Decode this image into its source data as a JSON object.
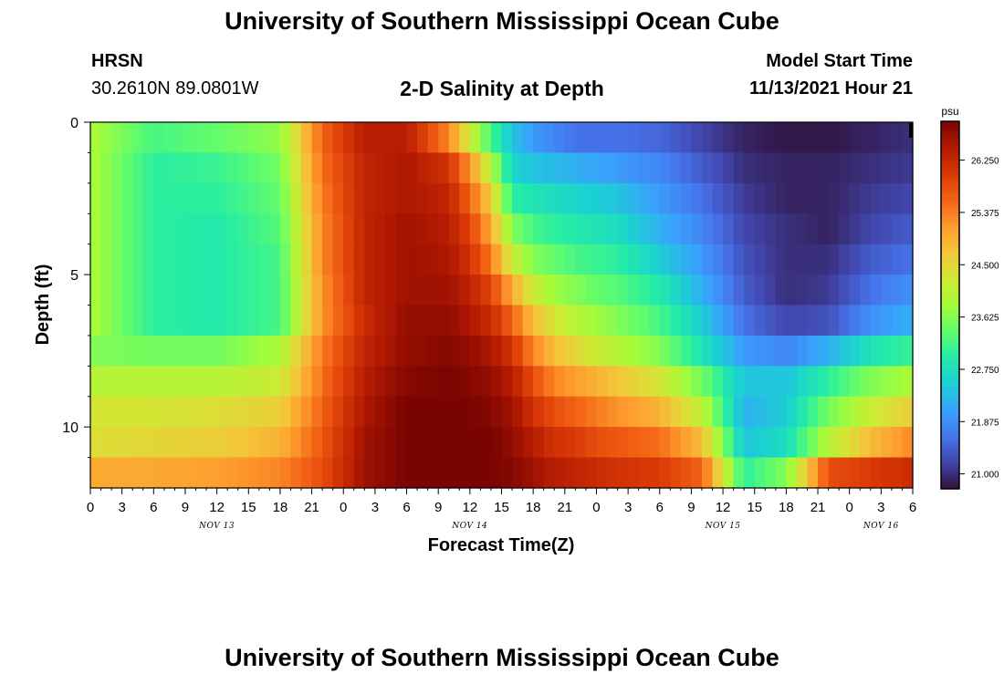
{
  "header": {
    "title": "University of Southern Mississippi Ocean Cube",
    "station": "HRSN",
    "coords": "30.2610N  89.0801W",
    "chart_title": "2-D Salinity at Depth",
    "model_start_label": "Model Start Time",
    "model_start_value": "11/13/2021 Hour 21"
  },
  "footer": {
    "title": "University of Southern Mississippi Ocean Cube"
  },
  "colors": {
    "background": "#ffffff",
    "axis": "#000000",
    "colormap": [
      "#30123b",
      "#4145ab",
      "#4675ed",
      "#39a2fc",
      "#1bcfd4",
      "#24eca6",
      "#61fc6c",
      "#a4fc3b",
      "#d1e834",
      "#f3c63a",
      "#fe9b2d",
      "#f36315",
      "#d93806",
      "#b11901",
      "#7a0402"
    ]
  },
  "chart_data": {
    "type": "heatmap",
    "title": "2-D Salinity at Depth",
    "xlabel": "Forecast Time(Z)",
    "ylabel": "Depth (ft)",
    "x_tick_labels": [
      "0",
      "3",
      "6",
      "9",
      "12",
      "15",
      "18",
      "21",
      "0",
      "3",
      "6",
      "9",
      "12",
      "15",
      "18",
      "21",
      "0",
      "3",
      "6",
      "9",
      "12",
      "15",
      "18",
      "21",
      "0",
      "3",
      "6"
    ],
    "x_start_hour": 0,
    "x_end_hour": 78,
    "date_labels": [
      {
        "label": "NOV 13",
        "hour": 12
      },
      {
        "label": "NOV 14",
        "hour": 36
      },
      {
        "label": "NOV 15",
        "hour": 60
      },
      {
        "label": "NOV 16",
        "hour": 75
      }
    ],
    "ylim": [
      0,
      12
    ],
    "y_ticks": [
      0,
      5,
      10
    ],
    "y_minor_ticks": [
      1,
      2,
      3,
      4,
      6,
      7,
      8,
      9,
      11
    ],
    "colorbar": {
      "unit": "psu",
      "min": 20.75,
      "max": 26.9,
      "ticks": [
        "21.000",
        "21.875",
        "22.750",
        "23.625",
        "24.500",
        "25.375",
        "26.250"
      ]
    },
    "time_hours": [
      0,
      6,
      12,
      18,
      22,
      26,
      30,
      34,
      36,
      38,
      40,
      42,
      44,
      46,
      48,
      50,
      54,
      58,
      62,
      66,
      70,
      74,
      78
    ],
    "depth_levels_ft": [
      0.5,
      1.5,
      2.5,
      3.5,
      4.5,
      5.5,
      6.5,
      7.5,
      8.5,
      9.5,
      10.5,
      11.5
    ],
    "salinity_psu": [
      [
        23.9,
        23.2,
        23.4,
        23.7,
        25.6,
        26.4,
        26.4,
        25.3,
        24.2,
        23.2,
        22.4,
        22.0,
        21.8,
        21.6,
        21.6,
        21.6,
        21.5,
        21.2,
        20.9,
        20.8,
        20.8,
        20.9,
        21.0
      ],
      [
        23.9,
        23.0,
        23.1,
        23.5,
        25.5,
        26.3,
        26.5,
        26.1,
        25.2,
        24.0,
        22.6,
        22.4,
        22.3,
        22.2,
        22.1,
        22.0,
        21.8,
        21.4,
        21.0,
        20.9,
        20.9,
        21.0,
        21.1
      ],
      [
        23.9,
        23.0,
        23.0,
        23.4,
        25.4,
        26.3,
        26.5,
        26.3,
        25.6,
        24.6,
        23.0,
        22.8,
        22.7,
        22.6,
        22.5,
        22.4,
        22.0,
        21.6,
        21.1,
        20.9,
        20.9,
        21.1,
        21.2
      ],
      [
        23.9,
        23.0,
        22.9,
        23.3,
        25.3,
        26.3,
        26.6,
        26.4,
        25.9,
        25.0,
        23.6,
        23.2,
        23.0,
        22.9,
        22.8,
        22.7,
        22.2,
        21.8,
        21.2,
        21.0,
        20.9,
        21.2,
        21.4
      ],
      [
        23.9,
        23.0,
        22.9,
        23.2,
        25.3,
        26.3,
        26.6,
        26.5,
        26.1,
        25.4,
        24.2,
        23.6,
        23.4,
        23.2,
        23.1,
        23.0,
        22.5,
        22.0,
        21.3,
        21.0,
        21.0,
        21.4,
        21.6
      ],
      [
        23.9,
        23.0,
        22.9,
        23.2,
        25.2,
        26.3,
        26.6,
        26.6,
        26.3,
        25.9,
        25.0,
        24.2,
        23.8,
        23.6,
        23.4,
        23.3,
        22.9,
        22.2,
        21.4,
        21.0,
        21.1,
        21.6,
        21.9
      ],
      [
        23.9,
        23.0,
        22.9,
        23.2,
        25.2,
        26.2,
        26.7,
        26.7,
        26.5,
        26.2,
        25.6,
        24.8,
        24.3,
        24.0,
        23.8,
        23.6,
        23.2,
        22.5,
        21.6,
        21.2,
        21.3,
        21.9,
        22.2
      ],
      [
        23.6,
        23.5,
        23.5,
        23.9,
        25.4,
        26.3,
        26.7,
        26.8,
        26.7,
        26.5,
        26.1,
        25.3,
        24.8,
        24.5,
        24.2,
        24.0,
        23.6,
        22.8,
        22.0,
        21.8,
        22.2,
        22.8,
        23.1
      ],
      [
        24.0,
        24.0,
        24.0,
        24.2,
        25.5,
        26.4,
        26.8,
        26.9,
        26.8,
        26.7,
        26.4,
        25.8,
        25.3,
        25.1,
        24.9,
        24.7,
        24.3,
        23.5,
        22.4,
        22.4,
        23.0,
        23.6,
        23.9
      ],
      [
        24.3,
        24.3,
        24.4,
        24.6,
        25.6,
        26.5,
        26.9,
        26.9,
        26.9,
        26.8,
        26.6,
        26.1,
        25.8,
        25.6,
        25.4,
        25.2,
        24.9,
        24.1,
        22.2,
        22.5,
        23.5,
        24.2,
        24.6
      ],
      [
        24.4,
        24.5,
        24.6,
        24.9,
        25.7,
        26.6,
        26.9,
        26.9,
        26.9,
        26.9,
        26.7,
        26.4,
        26.1,
        26.0,
        25.8,
        25.7,
        25.5,
        24.8,
        22.4,
        22.7,
        24.0,
        24.8,
        25.3
      ],
      [
        25.0,
        25.0,
        25.1,
        25.3,
        25.8,
        26.6,
        26.9,
        26.9,
        26.9,
        26.9,
        26.8,
        26.6,
        26.4,
        26.3,
        26.2,
        26.1,
        26.0,
        25.6,
        23.0,
        23.6,
        25.8,
        26.0,
        26.2
      ]
    ]
  }
}
